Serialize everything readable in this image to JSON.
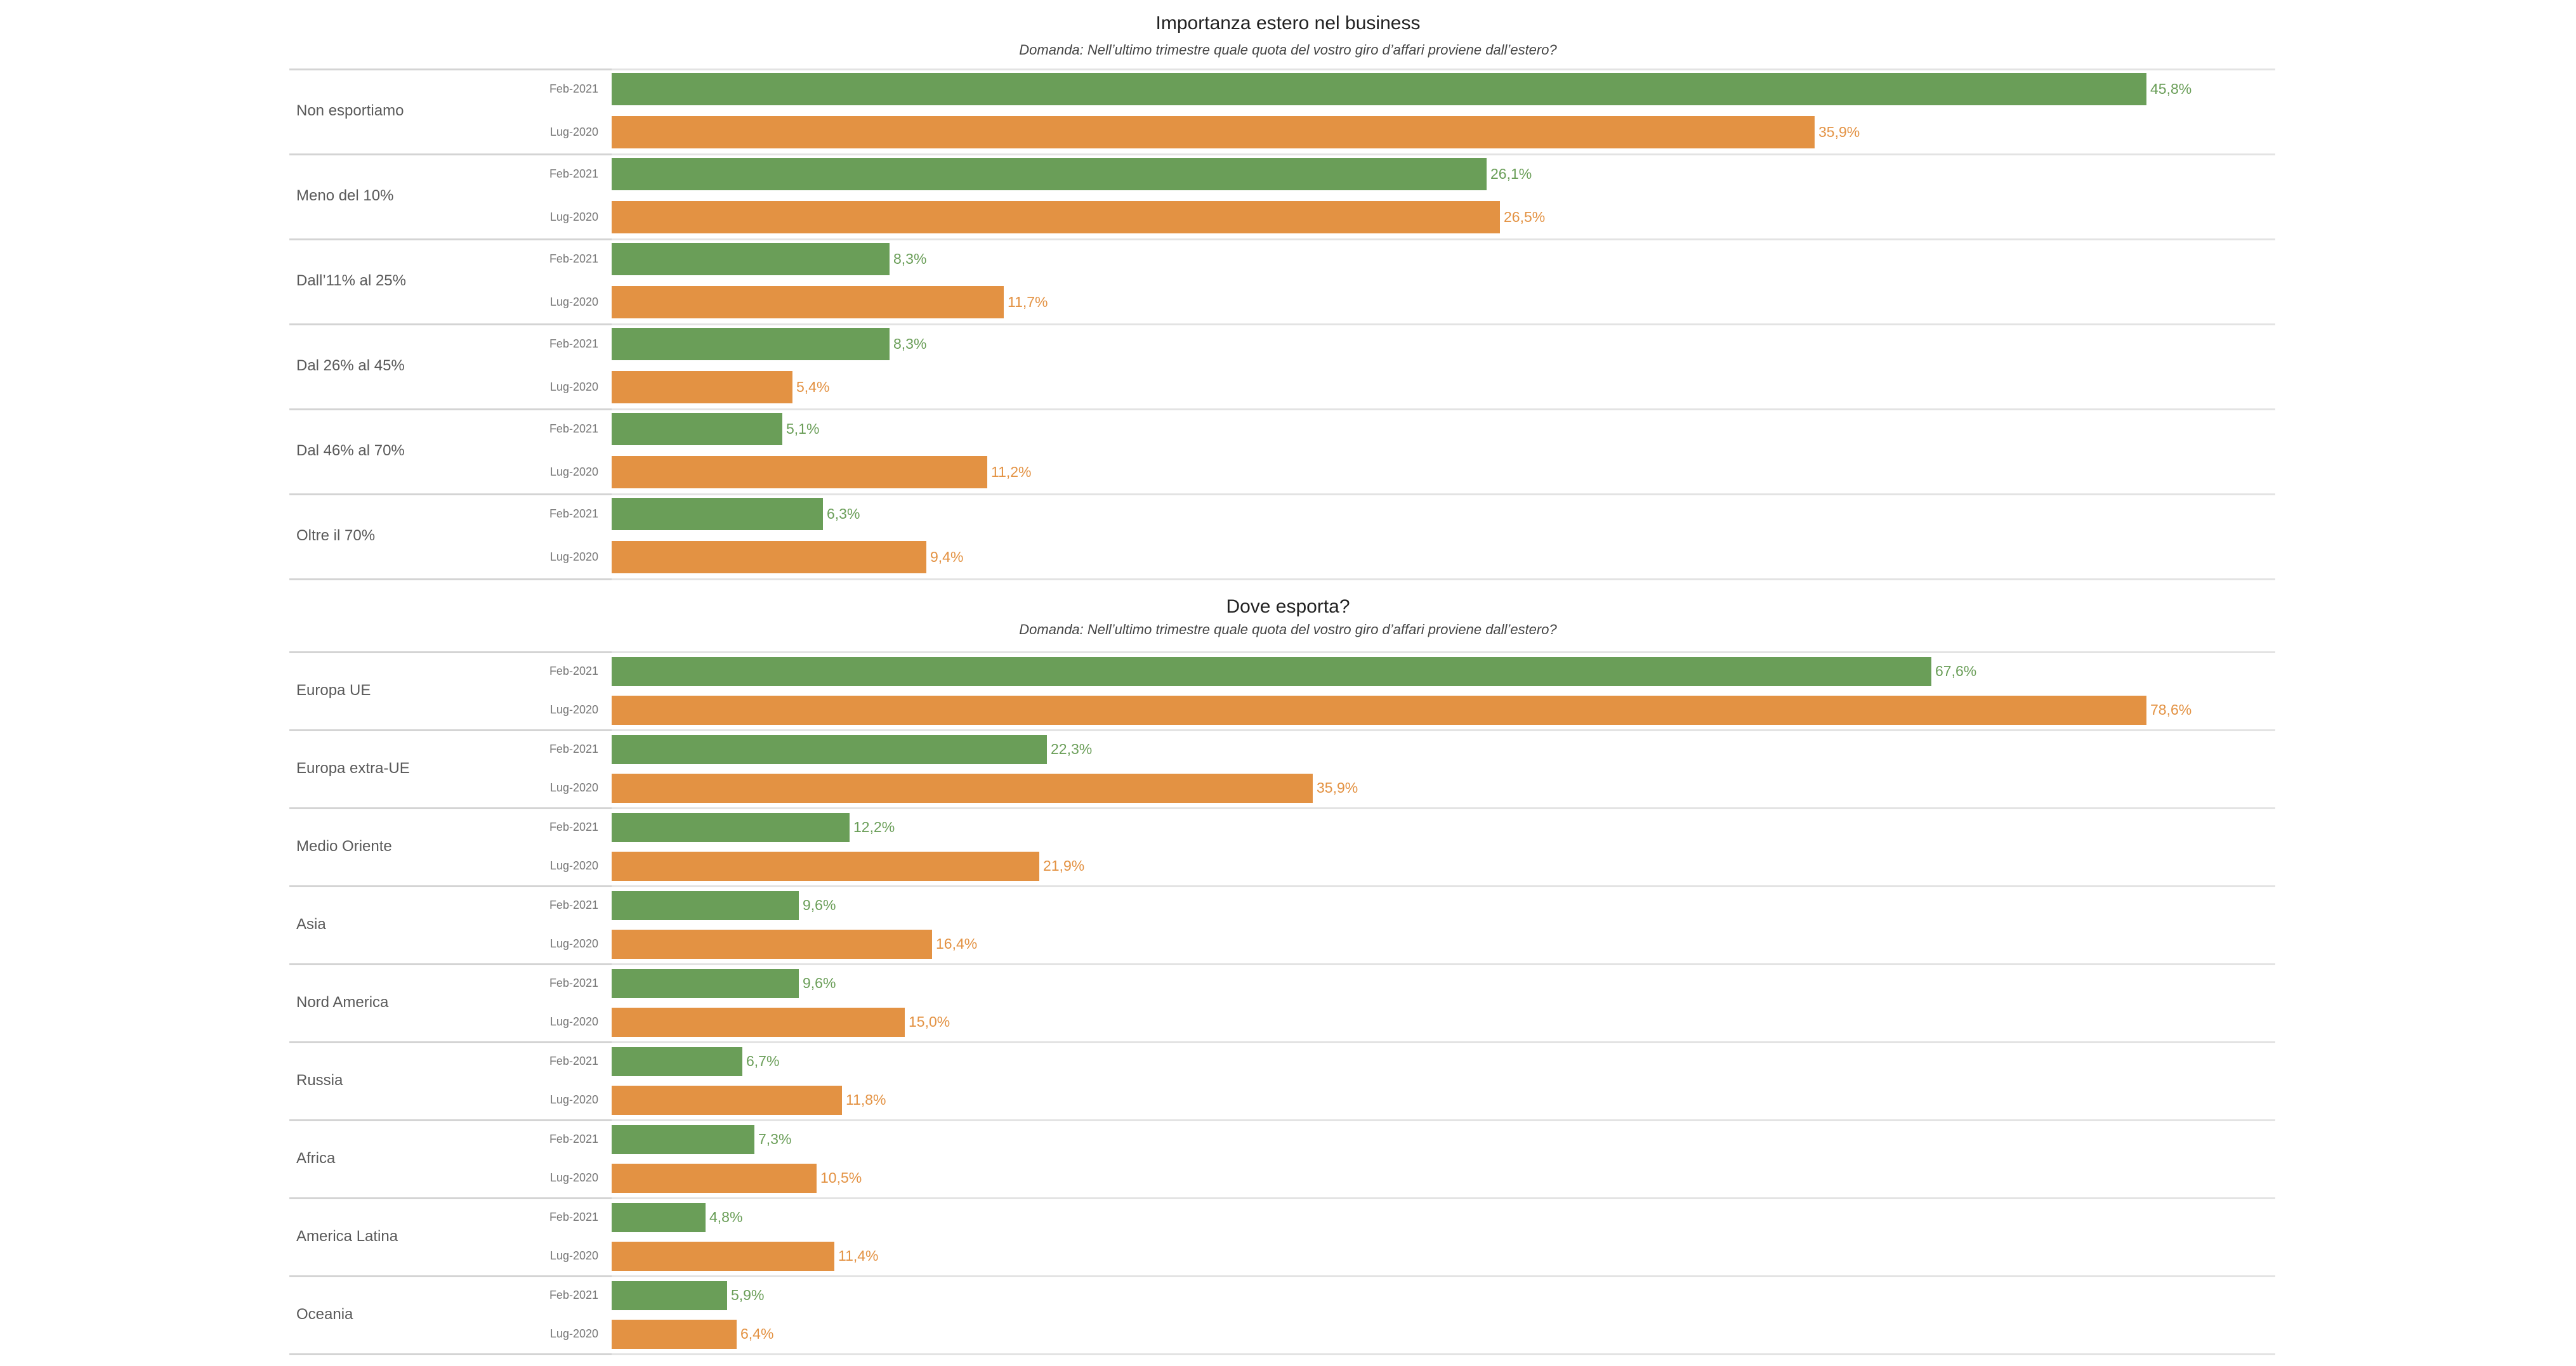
{
  "chart_data": [
    {
      "type": "bar",
      "orientation": "horizontal",
      "title": "Importanza estero nel business",
      "subtitle": "Domanda: Nell’ultimo trimestre quale quota del vostro giro d’affari proviene dall’estero?",
      "categories": [
        "Non esportiamo",
        "Meno del 10%",
        "Dall’11% al 25%",
        "Dal 26% al 45%",
        "Dal 46% al 70%",
        "Oltre il 70%"
      ],
      "series": [
        {
          "name": "Feb-2021",
          "color": "#6a9e58",
          "values": [
            45.8,
            26.1,
            8.3,
            8.3,
            5.1,
            6.3
          ],
          "labels": [
            "45,8%",
            "26,1%",
            "8,3%",
            "8,3%",
            "5,1%",
            "6,3%"
          ]
        },
        {
          "name": "Lug-2020",
          "color": "#e39243",
          "values": [
            35.9,
            26.5,
            11.7,
            5.4,
            11.2,
            9.4
          ],
          "labels": [
            "35,9%",
            "26,5%",
            "11,7%",
            "5,4%",
            "11,2%",
            "9,4%"
          ]
        }
      ],
      "xlabel": "",
      "ylabel": "",
      "unit": "%",
      "xlim": [
        0,
        45.8
      ],
      "grid": false,
      "legend": "none"
    },
    {
      "type": "bar",
      "orientation": "horizontal",
      "title": "Dove esporta?",
      "subtitle": "Domanda: Nell’ultimo trimestre quale quota del vostro giro d’affari proviene dall’estero?",
      "categories": [
        "Europa UE",
        "Europa extra-UE",
        "Medio Oriente",
        "Asia",
        "Nord America",
        "Russia",
        "Africa",
        "America Latina",
        "Oceania"
      ],
      "series": [
        {
          "name": "Feb-2021",
          "color": "#6a9e58",
          "values": [
            67.6,
            22.3,
            12.2,
            9.6,
            9.6,
            6.7,
            7.3,
            4.8,
            5.9
          ],
          "labels": [
            "67,6%",
            "22,3%",
            "12,2%",
            "9,6%",
            "9,6%",
            "6,7%",
            "7,3%",
            "4,8%",
            "5,9%"
          ]
        },
        {
          "name": "Lug-2020",
          "color": "#e39243",
          "values": [
            78.6,
            35.9,
            21.9,
            16.4,
            15.0,
            11.8,
            10.5,
            11.4,
            6.4
          ],
          "labels": [
            "78,6%",
            "35,9%",
            "21,9%",
            "16,4%",
            "15,0%",
            "11,8%",
            "10,5%",
            "11,4%",
            "6,4%"
          ]
        }
      ],
      "xlabel": "",
      "ylabel": "",
      "unit": "%",
      "xlim": [
        0,
        78.6
      ],
      "grid": false,
      "legend": "none"
    }
  ]
}
